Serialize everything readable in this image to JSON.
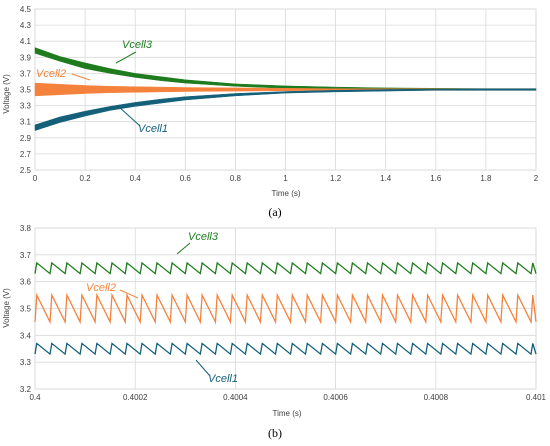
{
  "chart_data": [
    {
      "id": "a",
      "type": "line",
      "panel_label": "(a)",
      "xlabel": "Time (s)",
      "ylabel": "Voltage (V)",
      "xlim": [
        0,
        2
      ],
      "ylim": [
        2.5,
        4.5
      ],
      "x_ticks": [
        "0",
        "0.2",
        "0.4",
        "0.6",
        "0.8",
        "1",
        "1.2",
        "1.4",
        "1.6",
        "1.8",
        "2"
      ],
      "y_ticks": [
        "2.5",
        "2.7",
        "2.9",
        "3.1",
        "3.3",
        "3.5",
        "3.7",
        "3.9",
        "4.1",
        "4.3",
        "4.5"
      ],
      "grid": true,
      "series": [
        {
          "name": "Vcell3",
          "color": "#1e7b1e",
          "x": [
            0,
            0.1,
            0.2,
            0.3,
            0.4,
            0.5,
            0.6,
            0.8,
            1.0,
            1.2,
            1.4,
            1.6,
            1.8,
            2.0
          ],
          "upper": [
            4.02,
            3.91,
            3.83,
            3.76,
            3.7,
            3.66,
            3.62,
            3.57,
            3.545,
            3.53,
            3.52,
            3.515,
            3.51,
            3.51
          ],
          "lower": [
            3.95,
            3.85,
            3.76,
            3.7,
            3.65,
            3.61,
            3.58,
            3.54,
            3.515,
            3.505,
            3.495,
            3.49,
            3.49,
            3.49
          ]
        },
        {
          "name": "Vcell2",
          "color": "#f5823c",
          "x": [
            0,
            0.1,
            0.2,
            0.3,
            0.4,
            0.5,
            0.6,
            0.8,
            1.0,
            1.2,
            1.4,
            1.6,
            1.8,
            2.0
          ],
          "upper": [
            3.58,
            3.565,
            3.55,
            3.54,
            3.535,
            3.53,
            3.525,
            3.52,
            3.515,
            3.51,
            3.51,
            3.51,
            3.51,
            3.51
          ],
          "lower": [
            3.42,
            3.435,
            3.45,
            3.46,
            3.465,
            3.47,
            3.475,
            3.48,
            3.485,
            3.49,
            3.49,
            3.49,
            3.49,
            3.49
          ]
        },
        {
          "name": "Vcell1",
          "color": "#14607a",
          "x": [
            0,
            0.1,
            0.2,
            0.3,
            0.4,
            0.5,
            0.6,
            0.8,
            1.0,
            1.2,
            1.4,
            1.6,
            1.8,
            2.0
          ],
          "upper": [
            3.06,
            3.16,
            3.23,
            3.29,
            3.34,
            3.38,
            3.41,
            3.45,
            3.475,
            3.49,
            3.5,
            3.505,
            3.51,
            3.51
          ],
          "lower": [
            2.99,
            3.09,
            3.17,
            3.24,
            3.29,
            3.33,
            3.37,
            3.42,
            3.455,
            3.47,
            3.48,
            3.49,
            3.49,
            3.49
          ]
        }
      ]
    },
    {
      "id": "b",
      "type": "line",
      "panel_label": "(b)",
      "xlabel": "Time (s)",
      "ylabel": "Voltage (V)",
      "xlim": [
        0.4,
        0.401
      ],
      "ylim": [
        3.2,
        3.8
      ],
      "x_ticks": [
        "0.4",
        "0.4002",
        "0.4004",
        "0.4006",
        "0.4008",
        "0.401"
      ],
      "y_ticks": [
        "3.2",
        "3.3",
        "3.4",
        "3.5",
        "3.6",
        "3.7",
        "3.8"
      ],
      "grid": true,
      "ripple_period": 3e-05,
      "series": [
        {
          "name": "Vcell3",
          "color": "#1e7b1e",
          "high": 3.67,
          "low": 3.63
        },
        {
          "name": "Vcell2",
          "color": "#f5823c",
          "high": 3.55,
          "low": 3.45
        },
        {
          "name": "Vcell1",
          "color": "#14607a",
          "high": 3.37,
          "low": 3.33
        }
      ]
    }
  ]
}
